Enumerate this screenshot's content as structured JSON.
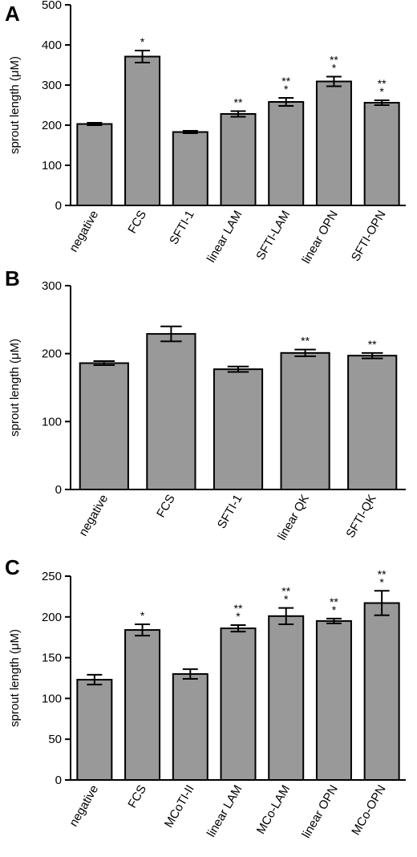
{
  "chart_data": [
    {
      "type": "bar",
      "panel": "A",
      "ylabel": "sprout length (μM)",
      "ylim": [
        0,
        500
      ],
      "yticks": [
        0,
        100,
        200,
        300,
        400,
        500
      ],
      "categories": [
        "negative",
        "FCS",
        "SFTI-1",
        "linear LAM",
        "SFTI-LAM",
        "linear OPN",
        "SFTI-OPN"
      ],
      "values": [
        203,
        371,
        183,
        228,
        258,
        309,
        256
      ],
      "errors": [
        3,
        15,
        3,
        7,
        10,
        12,
        6
      ],
      "significance": [
        "",
        "*",
        "",
        "**",
        "**\n*",
        "**\n*",
        "**\n*"
      ]
    },
    {
      "type": "bar",
      "panel": "B",
      "ylabel": "sprout length (μM)",
      "ylim": [
        0,
        300
      ],
      "yticks": [
        0,
        100,
        200,
        300
      ],
      "categories": [
        "negative",
        "FCS",
        "SFTI-1",
        "linear QK",
        "SFTI-QK"
      ],
      "values": [
        186,
        229,
        177,
        201,
        197
      ],
      "errors": [
        3,
        11,
        4,
        5,
        4
      ],
      "significance": [
        "",
        "",
        "",
        "**",
        "**"
      ]
    },
    {
      "type": "bar",
      "panel": "C",
      "ylabel": "sprout length (μM)",
      "ylim": [
        0,
        250
      ],
      "yticks": [
        0,
        50,
        100,
        150,
        200,
        250
      ],
      "categories": [
        "negative",
        "FCS",
        "MCoTI-II",
        "linear LAM",
        "MCo-LAM",
        "linear OPN",
        "MCo-OPN"
      ],
      "values": [
        123,
        184,
        130,
        186,
        201,
        195,
        217
      ],
      "errors": [
        6,
        7,
        6,
        4,
        10,
        3,
        15
      ],
      "significance": [
        "",
        "*",
        "",
        "**\n*",
        "**\n*",
        "**\n*",
        "**\n*"
      ]
    }
  ]
}
